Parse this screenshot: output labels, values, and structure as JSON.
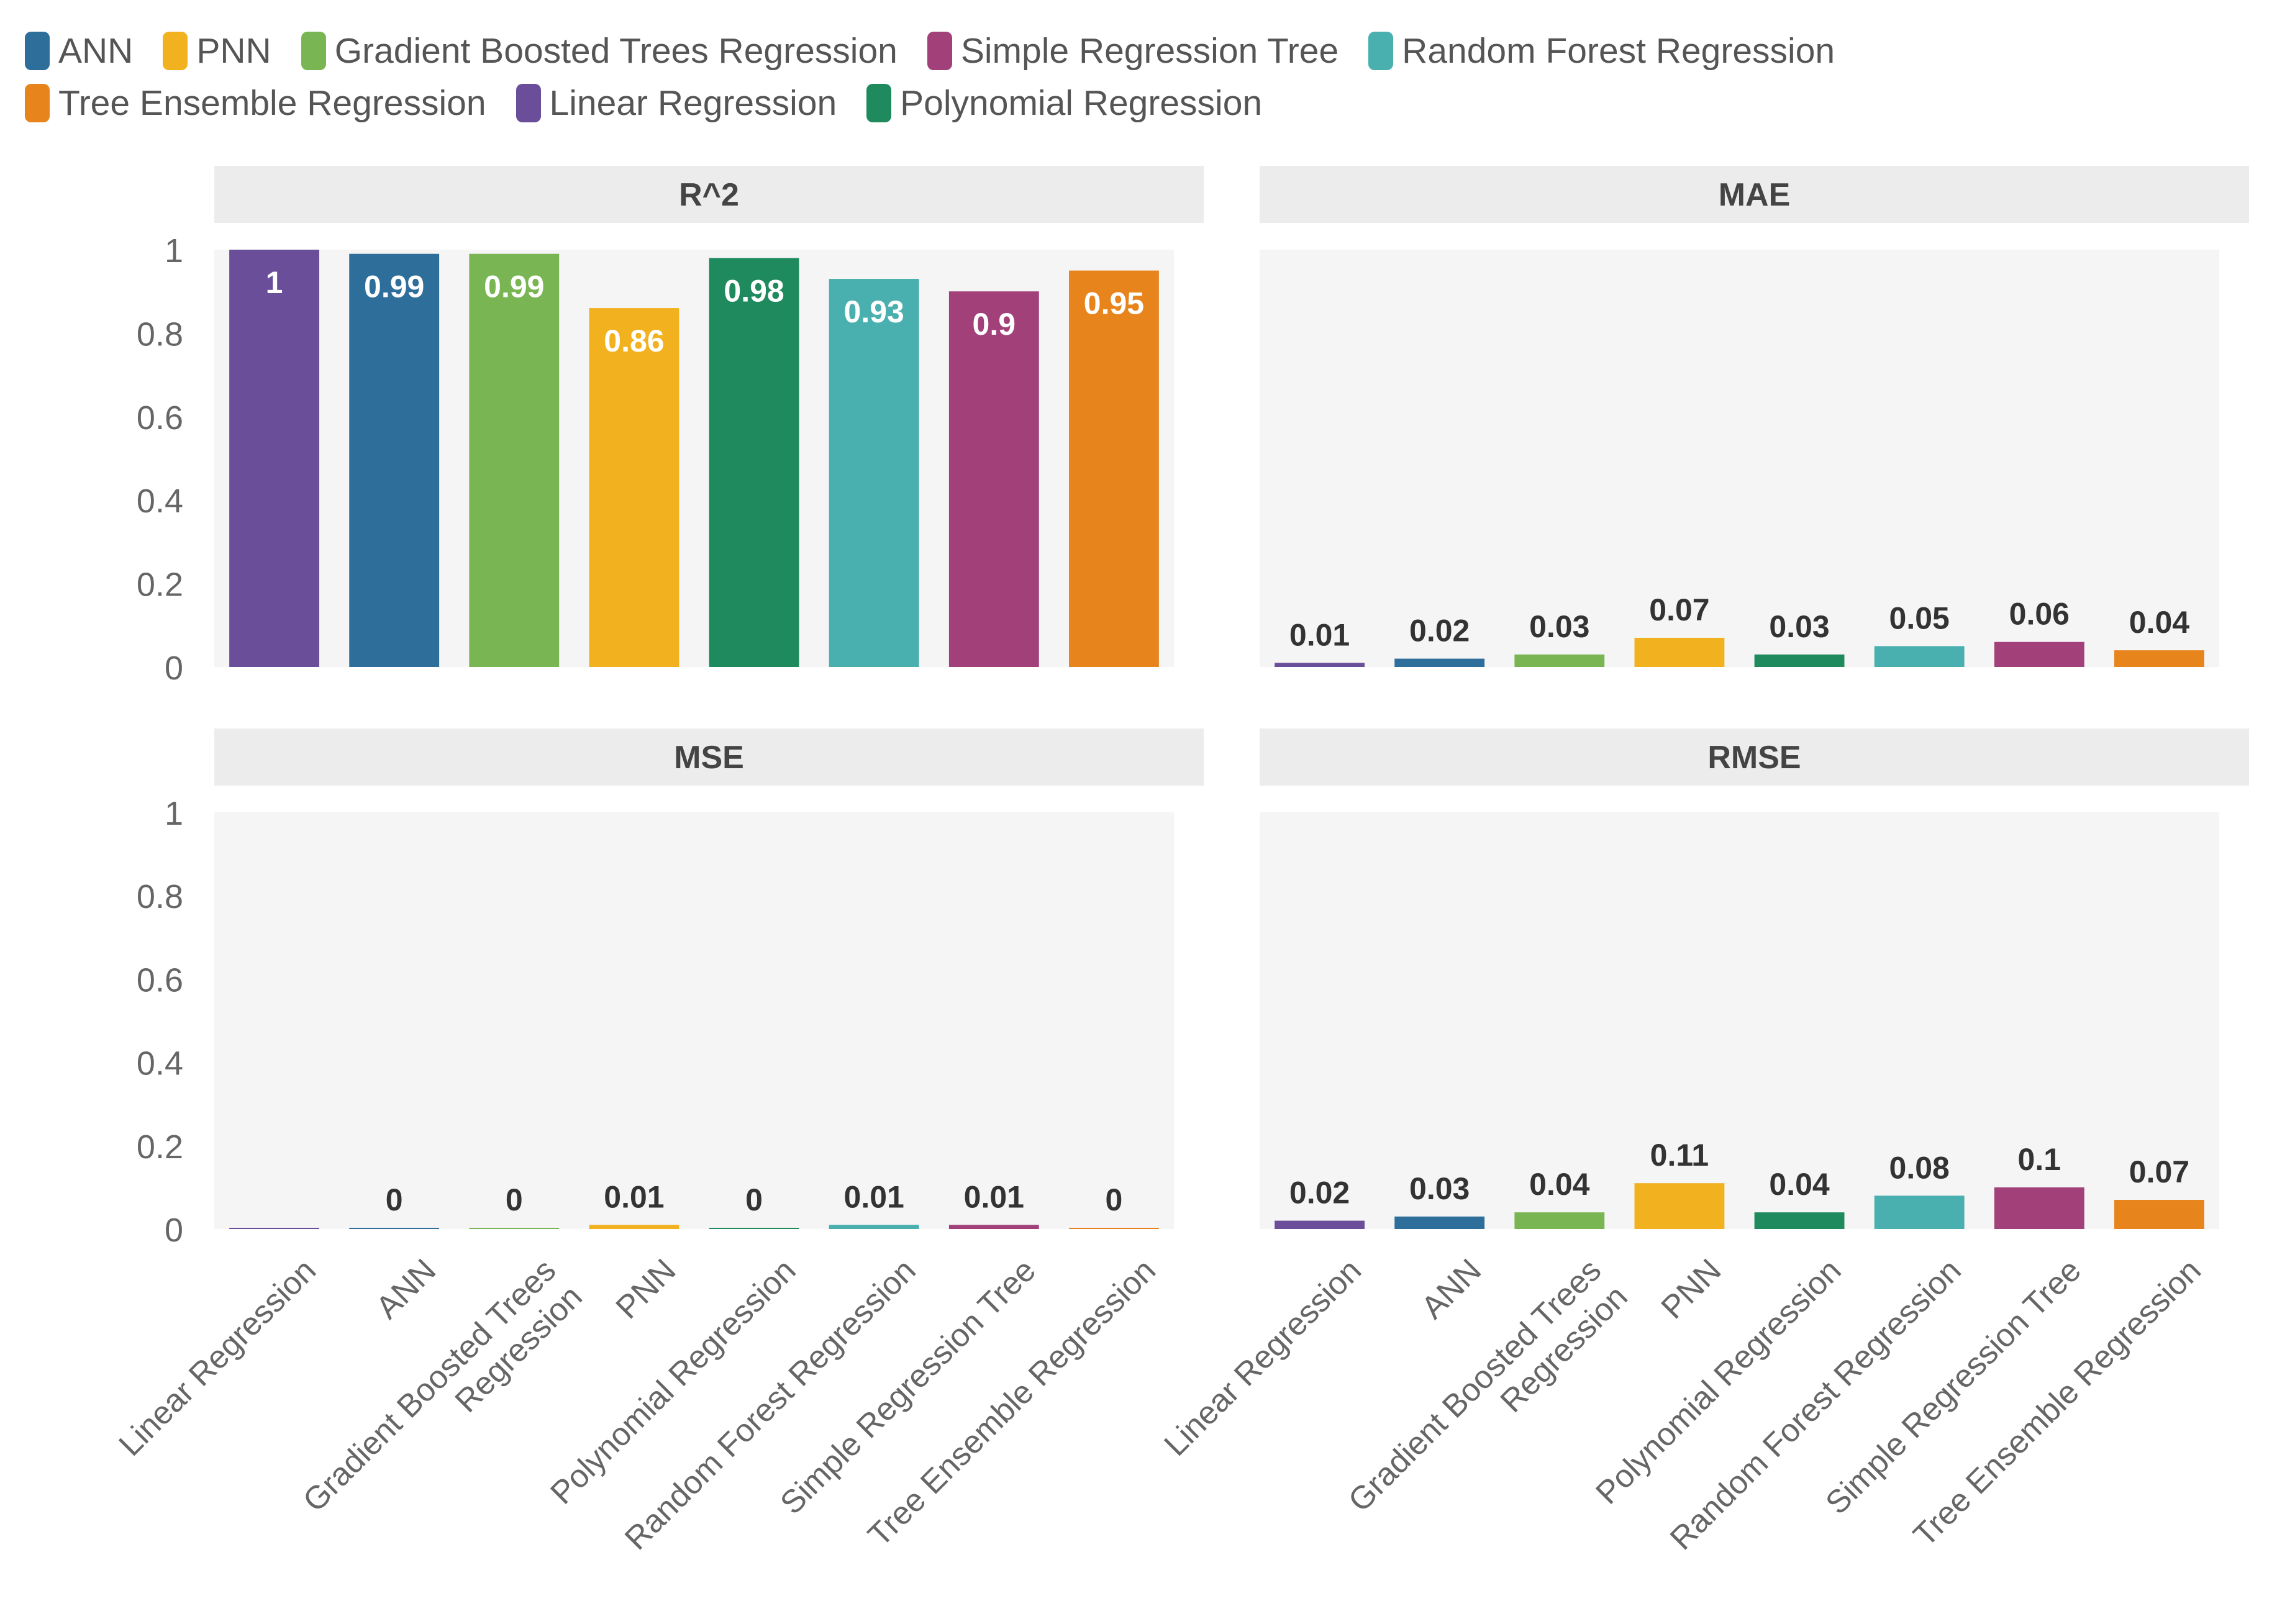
{
  "legend": {
    "items": [
      {
        "label": "ANN",
        "color": "#2E6E9A"
      },
      {
        "label": "PNN",
        "color": "#F2B11F"
      },
      {
        "label": "Gradient Boosted Trees Regression",
        "color": "#79B552"
      },
      {
        "label": "Simple Regression Tree",
        "color": "#A2407A"
      },
      {
        "label": "Random Forest Regression",
        "color": "#49AFAF"
      },
      {
        "label": "Tree Ensemble Regression",
        "color": "#E8841C"
      },
      {
        "label": "Linear Regression",
        "color": "#6B4E9A"
      },
      {
        "label": "Polynomial Regression",
        "color": "#1F8A5E"
      }
    ]
  },
  "chart_data": [
    {
      "type": "bar",
      "title": "R^2",
      "categories": [
        "Linear Regression",
        "ANN",
        "Gradient Boosted Trees Regression",
        "PNN",
        "Polynomial Regression",
        "Random Forest Regression",
        "Simple Regression Tree",
        "Tree Ensemble Regression"
      ],
      "values": [
        1,
        0.99,
        0.99,
        0.86,
        0.98,
        0.93,
        0.9,
        0.95
      ],
      "data_labels": [
        "1",
        "0.99",
        "0.99",
        "0.86",
        "0.98",
        "0.93",
        "0.9",
        "0.95"
      ],
      "ylim": [
        0,
        1
      ],
      "yticks": [
        "1",
        "0.8",
        "0.6",
        "0.4",
        "0.2",
        "0"
      ],
      "show_xlabels": false,
      "labels_inside": true
    },
    {
      "type": "bar",
      "title": "MAE",
      "categories": [
        "Linear Regression",
        "ANN",
        "Gradient Boosted Trees Regression",
        "PNN",
        "Polynomial Regression",
        "Random Forest Regression",
        "Simple Regression Tree",
        "Tree Ensemble Regression"
      ],
      "values": [
        0.01,
        0.02,
        0.03,
        0.07,
        0.03,
        0.05,
        0.06,
        0.04
      ],
      "data_labels": [
        "0.01",
        "0.02",
        "0.03",
        "0.07",
        "0.03",
        "0.05",
        "0.06",
        "0.04"
      ],
      "ylim": [
        0,
        1
      ],
      "yticks": [],
      "show_xlabels": false,
      "labels_inside": false
    },
    {
      "type": "bar",
      "title": "MSE",
      "categories": [
        "Linear Regression",
        "ANN",
        "Gradient Boosted Trees Regression",
        "PNN",
        "Polynomial Regression",
        "Random Forest Regression",
        "Simple Regression Tree",
        "Tree Ensemble Regression"
      ],
      "category_labels": [
        [
          "Linear Regression"
        ],
        [
          "ANN"
        ],
        [
          "Gradient Boosted Trees",
          "Regression"
        ],
        [
          "PNN"
        ],
        [
          "Polynomial Regression"
        ],
        [
          "Random Forest Regression"
        ],
        [
          "Simple Regression Tree"
        ],
        [
          "Tree Ensemble Regression"
        ]
      ],
      "values": [
        0,
        0,
        0,
        0.01,
        0,
        0.01,
        0.01,
        0
      ],
      "data_labels": [
        "",
        "0",
        "0",
        "0.01",
        "0",
        "0.01",
        "0.01",
        "0"
      ],
      "ylim": [
        0,
        1
      ],
      "yticks": [
        "1",
        "0.8",
        "0.6",
        "0.4",
        "0.2",
        "0"
      ],
      "show_xlabels": true,
      "labels_inside": false
    },
    {
      "type": "bar",
      "title": "RMSE",
      "categories": [
        "Linear Regression",
        "ANN",
        "Gradient Boosted Trees Regression",
        "PNN",
        "Polynomial Regression",
        "Random Forest Regression",
        "Simple Regression Tree",
        "Tree Ensemble Regression"
      ],
      "category_labels": [
        [
          "Linear Regression"
        ],
        [
          "ANN"
        ],
        [
          "Gradient Boosted Trees",
          "Regression"
        ],
        [
          "PNN"
        ],
        [
          "Polynomial Regression"
        ],
        [
          "Random Forest Regression"
        ],
        [
          "Simple Regression Tree"
        ],
        [
          "Tree Ensemble Regression"
        ]
      ],
      "values": [
        0.02,
        0.03,
        0.04,
        0.11,
        0.04,
        0.08,
        0.1,
        0.07
      ],
      "data_labels": [
        "0.02",
        "0.03",
        "0.04",
        "0.11",
        "0.04",
        "0.08",
        "0.1",
        "0.07"
      ],
      "ylim": [
        0,
        1
      ],
      "yticks": [],
      "show_xlabels": true,
      "labels_inside": false
    }
  ],
  "bar_colors": [
    "#6B4E9A",
    "#2E6E9A",
    "#79B552",
    "#F2B11F",
    "#1F8A5E",
    "#49AFAF",
    "#A2407A",
    "#E8841C"
  ]
}
